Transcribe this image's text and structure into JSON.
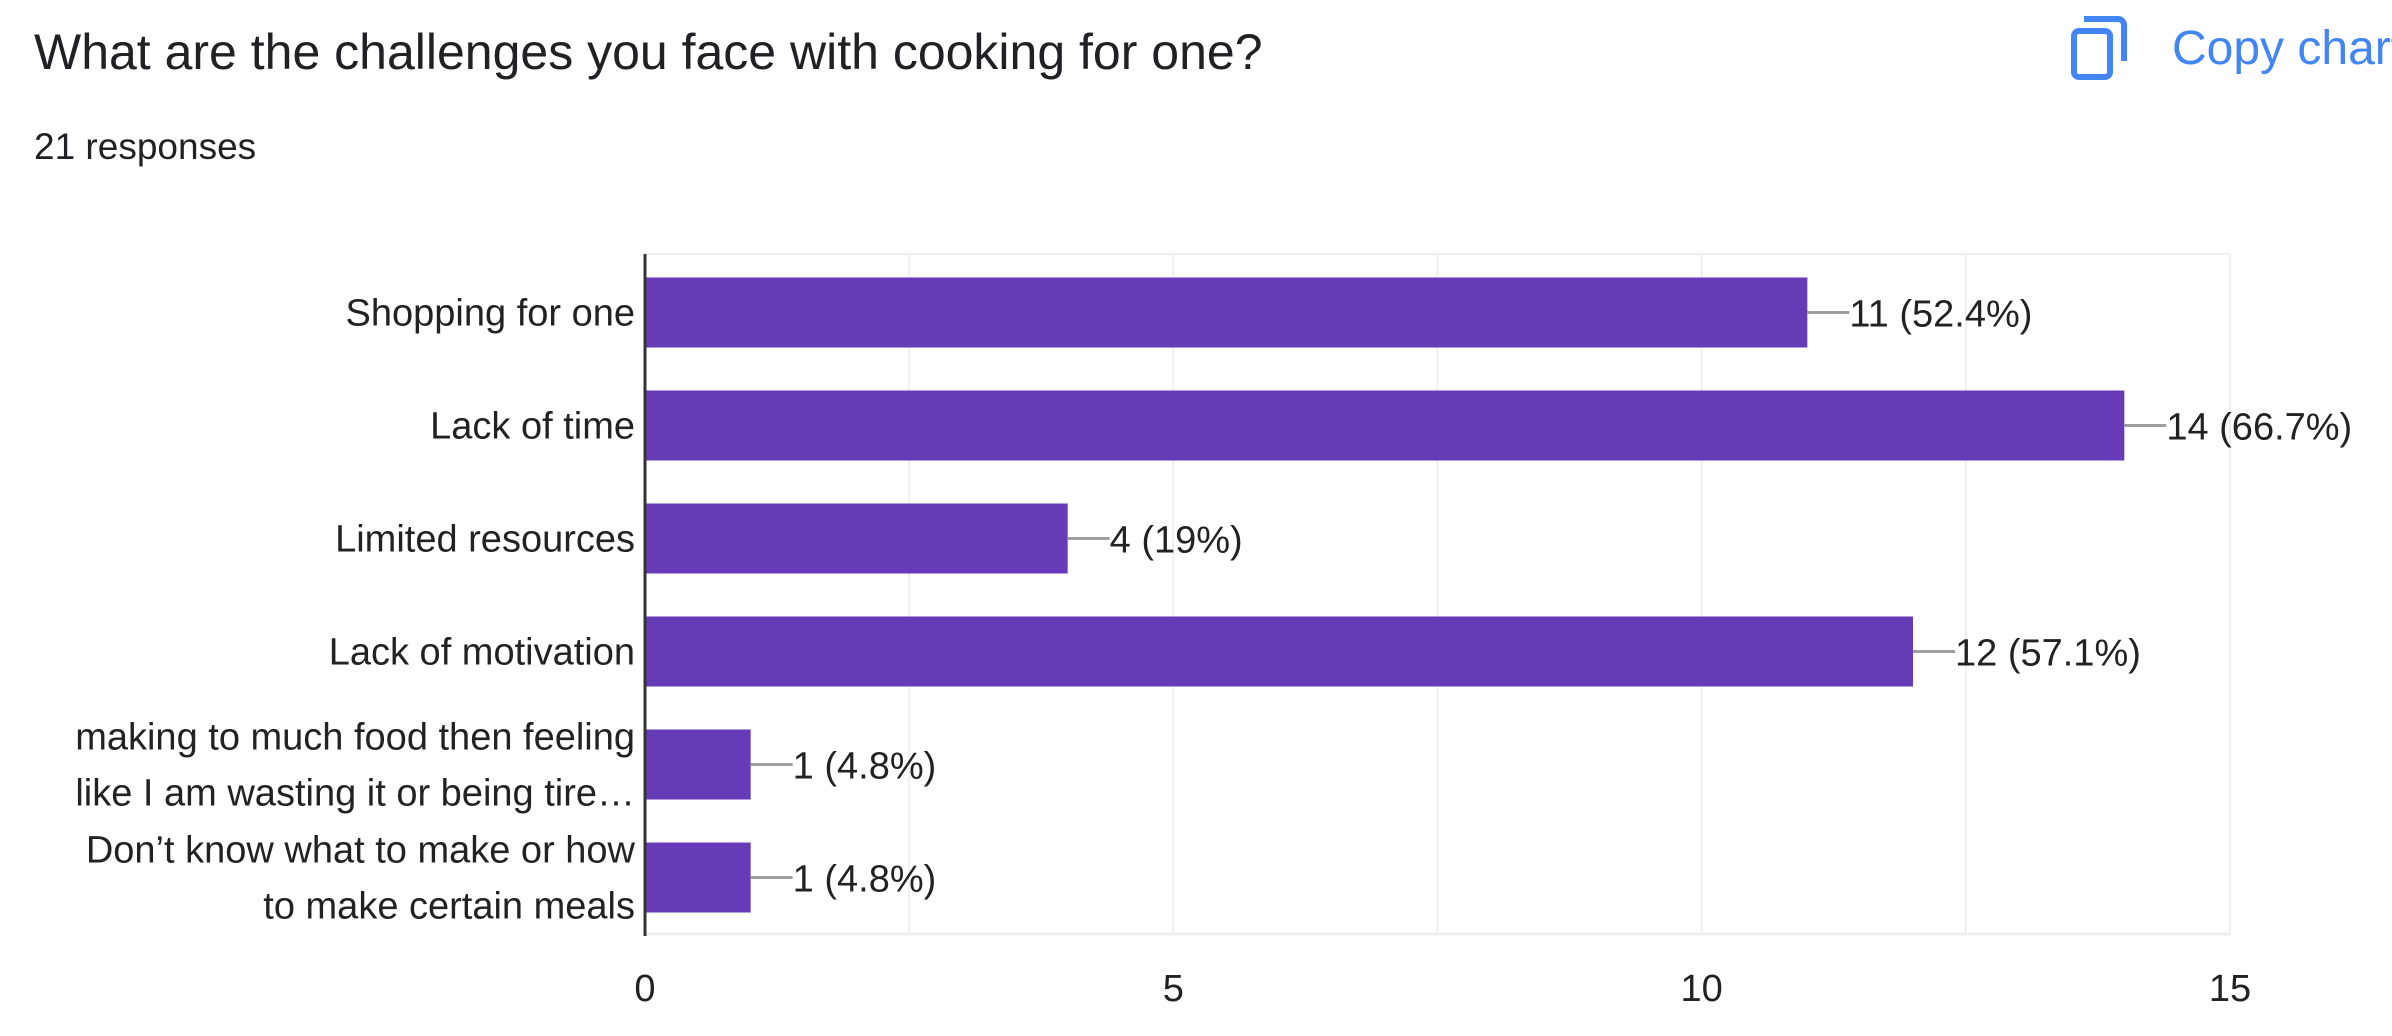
{
  "header": {
    "question": "What are the challenges you face with cooking for one?",
    "responses": "21 responses",
    "copy_chart_label": "Copy chart"
  },
  "icons": {
    "copy": "copy-icon"
  },
  "colors": {
    "bar": "#673ab7",
    "accent": "#4285f4",
    "grid": "#efefef",
    "axis": "#333333"
  },
  "chart_data": {
    "type": "bar",
    "orientation": "horizontal",
    "categories": [
      [
        "Shopping for one"
      ],
      [
        "Lack of time"
      ],
      [
        "Limited resources"
      ],
      [
        "Lack of motivation"
      ],
      [
        "making to much food then feeling",
        "like I am wasting it or being tire…"
      ],
      [
        "Don’t know what to make or how",
        "to make certain meals"
      ]
    ],
    "values": [
      11,
      14,
      4,
      12,
      1,
      1
    ],
    "data_labels": [
      "11 (52.4%)",
      "14 (66.7%)",
      "4 (19%)",
      "12 (57.1%)",
      "1 (4.8%)",
      "1 (4.8%)"
    ],
    "xlim": [
      0,
      15
    ],
    "xticks": [
      0,
      5,
      10,
      15
    ],
    "grid": true,
    "legend": "none"
  }
}
